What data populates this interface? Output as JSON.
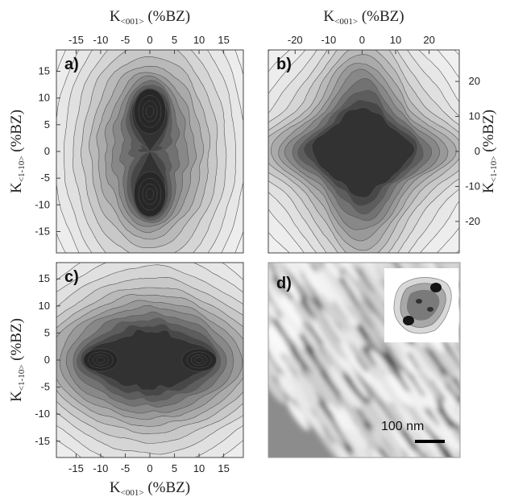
{
  "chart_data": [
    {
      "type": "heatmap",
      "panel_label": "a)",
      "xlabel": "K<001> (%BZ)",
      "xlabel_main": "K",
      "xlabel_sub": "<001>",
      "xlabel_unit": "(%BZ)",
      "ylabel_main": "K",
      "ylabel_sub": "<1-10>",
      "ylabel_unit": "(%BZ)",
      "x_axis_position": "top",
      "y_axis_position": "left",
      "xlim": [
        -19,
        19
      ],
      "ylim": [
        -19,
        19
      ],
      "xticks": [
        -15,
        -10,
        -5,
        0,
        5,
        10,
        15
      ],
      "yticks": [
        -15,
        -10,
        -5,
        0,
        5,
        10,
        15
      ],
      "features": [
        {
          "x": 0,
          "y": 7.5,
          "sx": 2.3,
          "sy": 3.0,
          "amp": 1.0
        },
        {
          "x": 0,
          "y": -8.0,
          "sx": 2.3,
          "sy": 3.0,
          "amp": 1.0
        },
        {
          "x": 0,
          "y": 0,
          "sx": 8.5,
          "sy": 12.5,
          "amp": 0.75
        }
      ]
    },
    {
      "type": "heatmap",
      "panel_label": "b)",
      "xlabel_main": "K",
      "xlabel_sub": "<001>",
      "xlabel_unit": "(%BZ)",
      "ylabel_main": "K",
      "ylabel_sub": "<1-10>",
      "ylabel_unit": "(%BZ)",
      "x_axis_position": "top",
      "y_axis_position": "right",
      "xlim": [
        -28,
        29
      ],
      "ylim": [
        -29,
        29
      ],
      "xticks": [
        -20,
        -10,
        0,
        10,
        20
      ],
      "yticks": [
        -20,
        -10,
        0,
        10,
        20
      ],
      "features": [
        {
          "x": 0,
          "y": 0,
          "sx": 5,
          "sy": 3,
          "amp": 1.0
        },
        {
          "x": 0,
          "y": 0,
          "sx": 19,
          "sy": 5,
          "amp": 0.7
        },
        {
          "x": 0,
          "y": 0,
          "sx": 7,
          "sy": 21,
          "amp": 0.6
        },
        {
          "x": 0,
          "y": 0,
          "sx": 15,
          "sy": 15,
          "amp": 0.55
        }
      ]
    },
    {
      "type": "heatmap",
      "panel_label": "c)",
      "xlabel_main": "K",
      "xlabel_sub": "<001>",
      "xlabel_unit": "(%BZ)",
      "ylabel_main": "K",
      "ylabel_sub": "<1-10>",
      "ylabel_unit": "(%BZ)",
      "x_axis_position": "bottom",
      "y_axis_position": "left",
      "xlim": [
        -19,
        19
      ],
      "ylim": [
        -18,
        18
      ],
      "xticks": [
        -15,
        -10,
        -5,
        0,
        5,
        10,
        15
      ],
      "yticks": [
        -15,
        -10,
        -5,
        0,
        5,
        10,
        15
      ],
      "features": [
        {
          "x": 0,
          "y": 0,
          "sx": 2.0,
          "sy": 1.6,
          "amp": 1.0
        },
        {
          "x": -10,
          "y": 0,
          "sx": 2.5,
          "sy": 1.5,
          "amp": 0.45
        },
        {
          "x": 10,
          "y": 0,
          "sx": 2.5,
          "sy": 1.5,
          "amp": 0.45
        },
        {
          "x": 0,
          "y": 0,
          "sx": 14,
          "sy": 6,
          "amp": 0.75
        },
        {
          "x": 0,
          "y": 0,
          "sx": 11,
          "sy": 11,
          "amp": 0.45
        }
      ]
    }
  ],
  "stm_image": {
    "panel_label": "d)",
    "scale_bar_label": "100 nm"
  }
}
